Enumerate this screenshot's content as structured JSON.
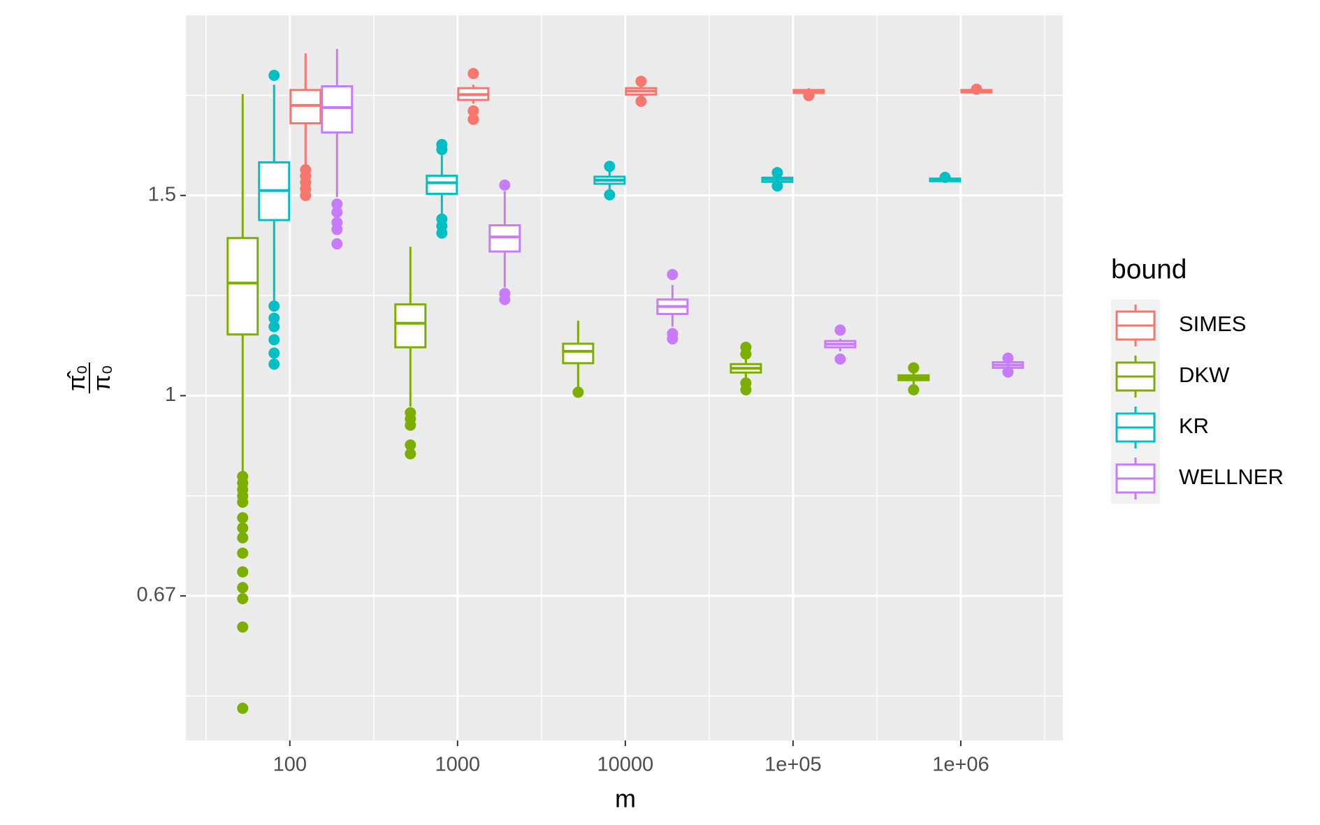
{
  "chart_data": {
    "type": "boxplot",
    "x_label": "m",
    "y_label": {
      "numerator": "π̂₀",
      "denominator": "π₀"
    },
    "legend_title": "bound",
    "legend": "right",
    "grid": true,
    "log_x": true,
    "log_y": true,
    "x": [
      100,
      1000,
      10000,
      100000,
      1000000
    ],
    "xlim": [
      24,
      4060000
    ],
    "xticks": [
      100,
      1000,
      10000,
      {
        "value": 100000,
        "label": "1e+05"
      },
      {
        "value": 1000000,
        "label": "1e+06"
      }
    ],
    "ylim": [
      0.4975,
      2.16
    ],
    "yticks": [
      {
        "value": 0.6667,
        "label": "0.67"
      },
      1,
      1.5
    ],
    "series": [
      {
        "name": "SIMES",
        "color": "#F8766D",
        "boxes": [
          {
            "whisker_low": 1.593,
            "q1": 1.736,
            "median": 1.8,
            "q3": 1.857,
            "whisker_high": 2.0,
            "outliers": [
              1.58,
              1.56,
              1.54,
              1.52,
              1.5
            ]
          },
          {
            "whisker_low": 1.807,
            "q1": 1.82,
            "median": 1.84,
            "q3": 1.864,
            "whisker_high": 1.877,
            "outliers": [
              1.92,
              1.78,
              1.75
            ]
          },
          {
            "whisker_low": 1.83,
            "q1": 1.84,
            "median": 1.853,
            "q3": 1.864,
            "whisker_high": 1.877,
            "outliers": [
              1.89,
              1.815
            ]
          },
          {
            "whisker_low": 1.84,
            "q1": 1.846,
            "median": 1.85,
            "q3": 1.857,
            "whisker_high": 1.864,
            "outliers": [
              1.836
            ]
          },
          {
            "whisker_low": 1.845,
            "q1": 1.848,
            "median": 1.853,
            "q3": 1.857,
            "whisker_high": 1.861,
            "outliers": [
              1.86
            ]
          }
        ]
      },
      {
        "name": "DKW",
        "color": "#7CAE00",
        "boxes": [
          {
            "whisker_low": 0.849,
            "q1": 1.132,
            "median": 1.256,
            "q3": 1.376,
            "whisker_high": 1.842,
            "outliers": [
              0.849,
              0.838,
              0.827,
              0.816,
              0.806,
              0.781,
              0.765,
              0.75,
              0.727,
              0.7,
              0.678,
              0.663,
              0.626,
              0.531
            ]
          },
          {
            "whisker_low": 0.978,
            "q1": 1.103,
            "median": 1.158,
            "q3": 1.203,
            "whisker_high": 1.352,
            "outliers": [
              0.966,
              0.954,
              0.942,
              0.905,
              0.889
            ]
          },
          {
            "whisker_low": 1.017,
            "q1": 1.068,
            "median": 1.094,
            "q3": 1.111,
            "whisker_high": 1.164,
            "outliers": [
              1.007
            ]
          },
          {
            "whisker_low": 1.033,
            "q1": 1.048,
            "median": 1.057,
            "q3": 1.066,
            "whisker_high": 1.081,
            "outliers": [
              1.103,
              1.088,
              1.026,
              1.012
            ]
          },
          {
            "whisker_low": 1.023,
            "q1": 1.032,
            "median": 1.037,
            "q3": 1.042,
            "whisker_high": 1.049,
            "outliers": [
              1.058,
              1.012
            ]
          }
        ]
      },
      {
        "name": "KR",
        "color": "#00BFC4",
        "boxes": [
          {
            "whisker_low": 1.205,
            "q1": 1.427,
            "median": 1.515,
            "q3": 1.604,
            "whisker_high": 1.877,
            "outliers": [
              1.913,
              1.199,
              1.17,
              1.15,
              1.12,
              1.09,
              1.066
            ]
          },
          {
            "whisker_low": 1.437,
            "q1": 1.505,
            "median": 1.539,
            "q3": 1.561,
            "whisker_high": 1.627,
            "outliers": [
              1.663,
              1.646,
              1.43,
              1.41,
              1.39
            ]
          },
          {
            "whisker_low": 1.515,
            "q1": 1.536,
            "median": 1.547,
            "q3": 1.558,
            "whisker_high": 1.58,
            "outliers": [
              1.591,
              1.502
            ]
          },
          {
            "whisker_low": 1.531,
            "q1": 1.542,
            "median": 1.55,
            "q3": 1.555,
            "whisker_high": 1.566,
            "outliers": [
              1.571,
              1.529
            ]
          },
          {
            "whisker_low": 1.54,
            "q1": 1.544,
            "median": 1.548,
            "q3": 1.552,
            "whisker_high": 1.555,
            "outliers": [
              1.556
            ]
          }
        ]
      },
      {
        "name": "WELLNER",
        "color": "#C77CFF",
        "boxes": [
          {
            "whisker_low": 1.495,
            "q1": 1.704,
            "median": 1.792,
            "q3": 1.871,
            "whisker_high": 2.018,
            "outliers": [
              1.474,
              1.45,
              1.42,
              1.4,
              1.36
            ]
          },
          {
            "whisker_low": 1.245,
            "q1": 1.339,
            "median": 1.379,
            "q3": 1.412,
            "whisker_high": 1.513,
            "outliers": [
              1.532,
              1.23,
              1.215
            ]
          },
          {
            "whisker_low": 1.15,
            "q1": 1.18,
            "median": 1.198,
            "q3": 1.215,
            "whisker_high": 1.251,
            "outliers": [
              1.278,
              1.134,
              1.122
            ]
          },
          {
            "whisker_low": 1.094,
            "q1": 1.103,
            "median": 1.11,
            "q3": 1.117,
            "whisker_high": 1.122,
            "outliers": [
              1.142,
              1.077
            ]
          },
          {
            "whisker_low": 1.053,
            "q1": 1.058,
            "median": 1.064,
            "q3": 1.07,
            "whisker_high": 1.075,
            "outliers": [
              1.079,
              1.049
            ]
          }
        ]
      }
    ]
  }
}
